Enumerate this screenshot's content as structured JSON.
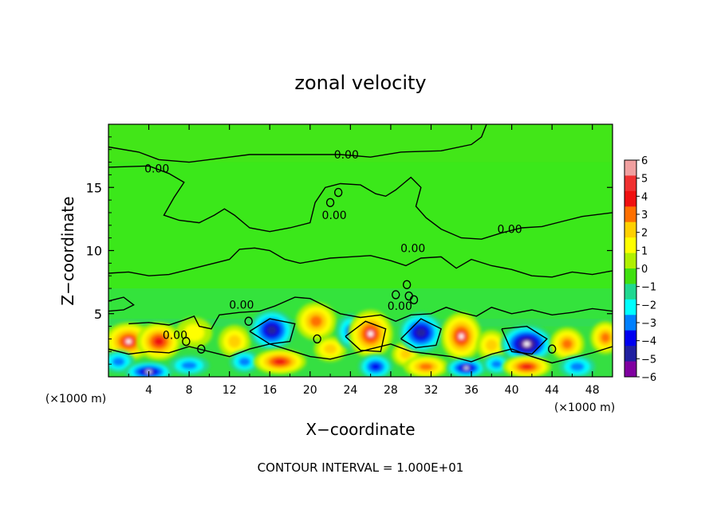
{
  "chart_data": {
    "type": "heatmap",
    "title": "zonal velocity",
    "xlabel": "X−coordinate",
    "ylabel": "Z−coordinate",
    "x_unit_left": "(×1000 m)",
    "x_unit_right": "(×1000 m)",
    "xlim": [
      0,
      50
    ],
    "ylim": [
      0,
      20
    ],
    "x_ticks": [
      4,
      8,
      12,
      16,
      20,
      24,
      28,
      32,
      36,
      40,
      44,
      48
    ],
    "y_ticks": [
      5,
      10,
      15
    ],
    "colorbar": {
      "min": -6,
      "max": 6,
      "labels": [
        "6",
        "5",
        "4",
        "3",
        "2",
        "1",
        "0",
        "−1",
        "−2",
        "−3",
        "−4",
        "−5",
        "−6"
      ],
      "colors": [
        "#f0a0a0",
        "#f03030",
        "#f01010",
        "#ff7000",
        "#ffd000",
        "#ffff00",
        "#b0f000",
        "#40e010",
        "#20d890",
        "#00ffff",
        "#0080ff",
        "#0000f0",
        "#2020a0",
        "#8000a0"
      ]
    },
    "contour_labels": [
      {
        "text": "0.00",
        "x": 23.6,
        "y": 17.6
      },
      {
        "text": "0.00",
        "x": 4.8,
        "y": 16.5
      },
      {
        "text": "0.00",
        "x": 22.4,
        "y": 12.8
      },
      {
        "text": "0.00",
        "x": 39.8,
        "y": 11.7
      },
      {
        "text": "0.00",
        "x": 30.2,
        "y": 10.2
      },
      {
        "text": "0.00",
        "x": 13.2,
        "y": 5.7
      },
      {
        "text": "0.00",
        "x": 28.9,
        "y": 5.6
      },
      {
        "text": "0.00",
        "x": 6.6,
        "y": 3.3
      }
    ],
    "features": [
      {
        "x": 2,
        "z": 2.8,
        "value": 5,
        "rx": 2.4,
        "rz": 1.5
      },
      {
        "x": 5,
        "z": 2.8,
        "value": 4.5,
        "rx": 2.2,
        "rz": 1.5
      },
      {
        "x": 8.5,
        "z": 3.5,
        "value": 2,
        "rx": 1.8,
        "rz": 1.2
      },
      {
        "x": 1,
        "z": 1.2,
        "value": -3,
        "rx": 1.6,
        "rz": 0.9
      },
      {
        "x": 4,
        "z": 0.4,
        "value": -5,
        "rx": 2.4,
        "rz": 0.8
      },
      {
        "x": 8,
        "z": 0.9,
        "value": -2.5,
        "rx": 2.0,
        "rz": 0.8
      },
      {
        "x": 12.5,
        "z": 2.8,
        "value": 2.5,
        "rx": 1.6,
        "rz": 1.3
      },
      {
        "x": 13.5,
        "z": 1.2,
        "value": -2.5,
        "rx": 1.5,
        "rz": 0.9
      },
      {
        "x": 16.2,
        "z": 3.7,
        "value": -4.5,
        "rx": 2.2,
        "rz": 1.6
      },
      {
        "x": 17,
        "z": 1.2,
        "value": 4.5,
        "rx": 2.6,
        "rz": 1.0
      },
      {
        "x": 20.6,
        "z": 4.4,
        "value": 4,
        "rx": 2.0,
        "rz": 1.5
      },
      {
        "x": 22,
        "z": 2.2,
        "value": 2.5,
        "rx": 1.6,
        "rz": 1.0
      },
      {
        "x": 24,
        "z": 3.6,
        "value": -3,
        "rx": 1.4,
        "rz": 1.4
      },
      {
        "x": 26,
        "z": 3.4,
        "value": 5,
        "rx": 2.2,
        "rz": 1.9
      },
      {
        "x": 26.5,
        "z": 0.8,
        "value": -4,
        "rx": 1.7,
        "rz": 1.0
      },
      {
        "x": 29.5,
        "z": 1.8,
        "value": 3,
        "rx": 1.4,
        "rz": 1.0
      },
      {
        "x": 31,
        "z": 3.5,
        "value": -4.5,
        "rx": 2.2,
        "rz": 1.6
      },
      {
        "x": 31.5,
        "z": 0.8,
        "value": 4,
        "rx": 2.2,
        "rz": 0.9
      },
      {
        "x": 35,
        "z": 3.2,
        "value": 5,
        "rx": 2.0,
        "rz": 1.9
      },
      {
        "x": 35.5,
        "z": 0.7,
        "value": -5,
        "rx": 2.0,
        "rz": 0.8
      },
      {
        "x": 38,
        "z": 2.5,
        "value": 3,
        "rx": 1.5,
        "rz": 1.2
      },
      {
        "x": 38.5,
        "z": 1.0,
        "value": -2.5,
        "rx": 1.4,
        "rz": 0.8
      },
      {
        "x": 41.5,
        "z": 2.6,
        "value": -5.5,
        "rx": 2.6,
        "rz": 1.5
      },
      {
        "x": 41.5,
        "z": 0.8,
        "value": 4.5,
        "rx": 2.4,
        "rz": 0.9
      },
      {
        "x": 45.5,
        "z": 2.6,
        "value": 3.5,
        "rx": 1.7,
        "rz": 1.3
      },
      {
        "x": 46.5,
        "z": 0.8,
        "value": -3,
        "rx": 1.8,
        "rz": 0.9
      },
      {
        "x": 49.3,
        "z": 3.1,
        "value": 4,
        "rx": 1.5,
        "rz": 1.3
      }
    ]
  },
  "footer": {
    "contour_interval": "CONTOUR INTERVAL = 1.000E+01"
  }
}
